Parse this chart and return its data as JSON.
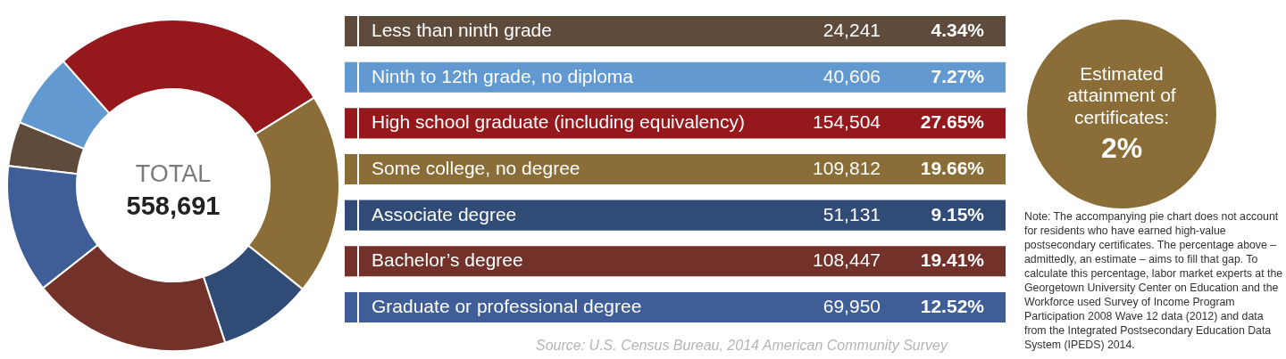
{
  "chart_data": {
    "type": "donut",
    "categories": [
      "Less than ninth grade",
      "Ninth to 12th grade, no diploma",
      "High school graduate (including equivalency)",
      "Some college, no degree",
      "Associate degree",
      "Bachelor’s degree",
      "Graduate or professional degree"
    ],
    "values": [
      24241,
      40606,
      154504,
      109812,
      51131,
      108447,
      69950
    ],
    "colors": [
      "#5e4b3c",
      "#6399d1",
      "#95191c",
      "#8a6d37",
      "#314b77",
      "#72322a",
      "#3f5e98"
    ],
    "value_labels": [
      "24,241",
      "40,606",
      "154,504",
      "109,812",
      "51,131",
      "108,447",
      "69,950"
    ],
    "legend": "right",
    "annotations": [
      "4.34%",
      "7.27%",
      "27.65%",
      "19.66%",
      "9.15%",
      "19.41%",
      "12.52%",
      "TOTAL",
      "558,691",
      "Estimated attainment of certificates:",
      "2%",
      "Source: U.S. Census Bureau, 2014 American Community Survey",
      "Note: The accompanying pie chart does not account for residents who have earned high-value postsecondary certificates. The percentage above – admittedly, an estimate – aims to fill that gap. To calculate this percentage, labor market experts at the Georgetown University Center on Education and the Workforce used Survey of Income Program Participation 2008 Wave 12 data (2012) and data from the Integrated Postsecondary Education Data System (IPEDS) 2014."
    ]
  }
}
